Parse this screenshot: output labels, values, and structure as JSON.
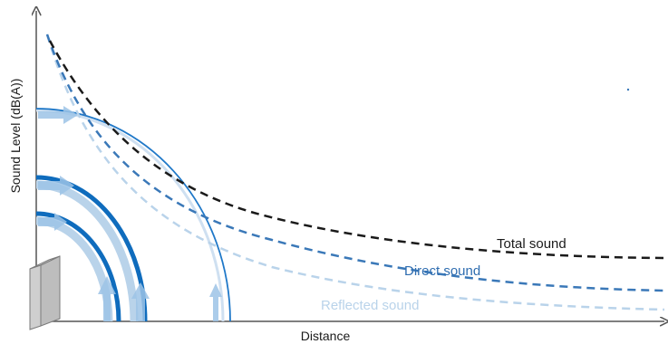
{
  "axes": {
    "x_label": "Distance",
    "y_label": "Sound Level (dB(A))"
  },
  "curves": [
    {
      "name": "Total sound",
      "color": "#1a1a1a"
    },
    {
      "name": "Direct sound",
      "color": "#3a78b8"
    },
    {
      "name": "Reflected sound",
      "color": "#b9d3ea"
    }
  ],
  "colors": {
    "wave_dark": "#0f6cbd",
    "wave_light": "#b9d3ea",
    "arrow": "#9cc3e6",
    "speaker": "#c9c9c9",
    "axis": "#555555"
  },
  "icons": [
    "speaker-icon",
    "sound-wave-icon",
    "arrow-icon"
  ]
}
